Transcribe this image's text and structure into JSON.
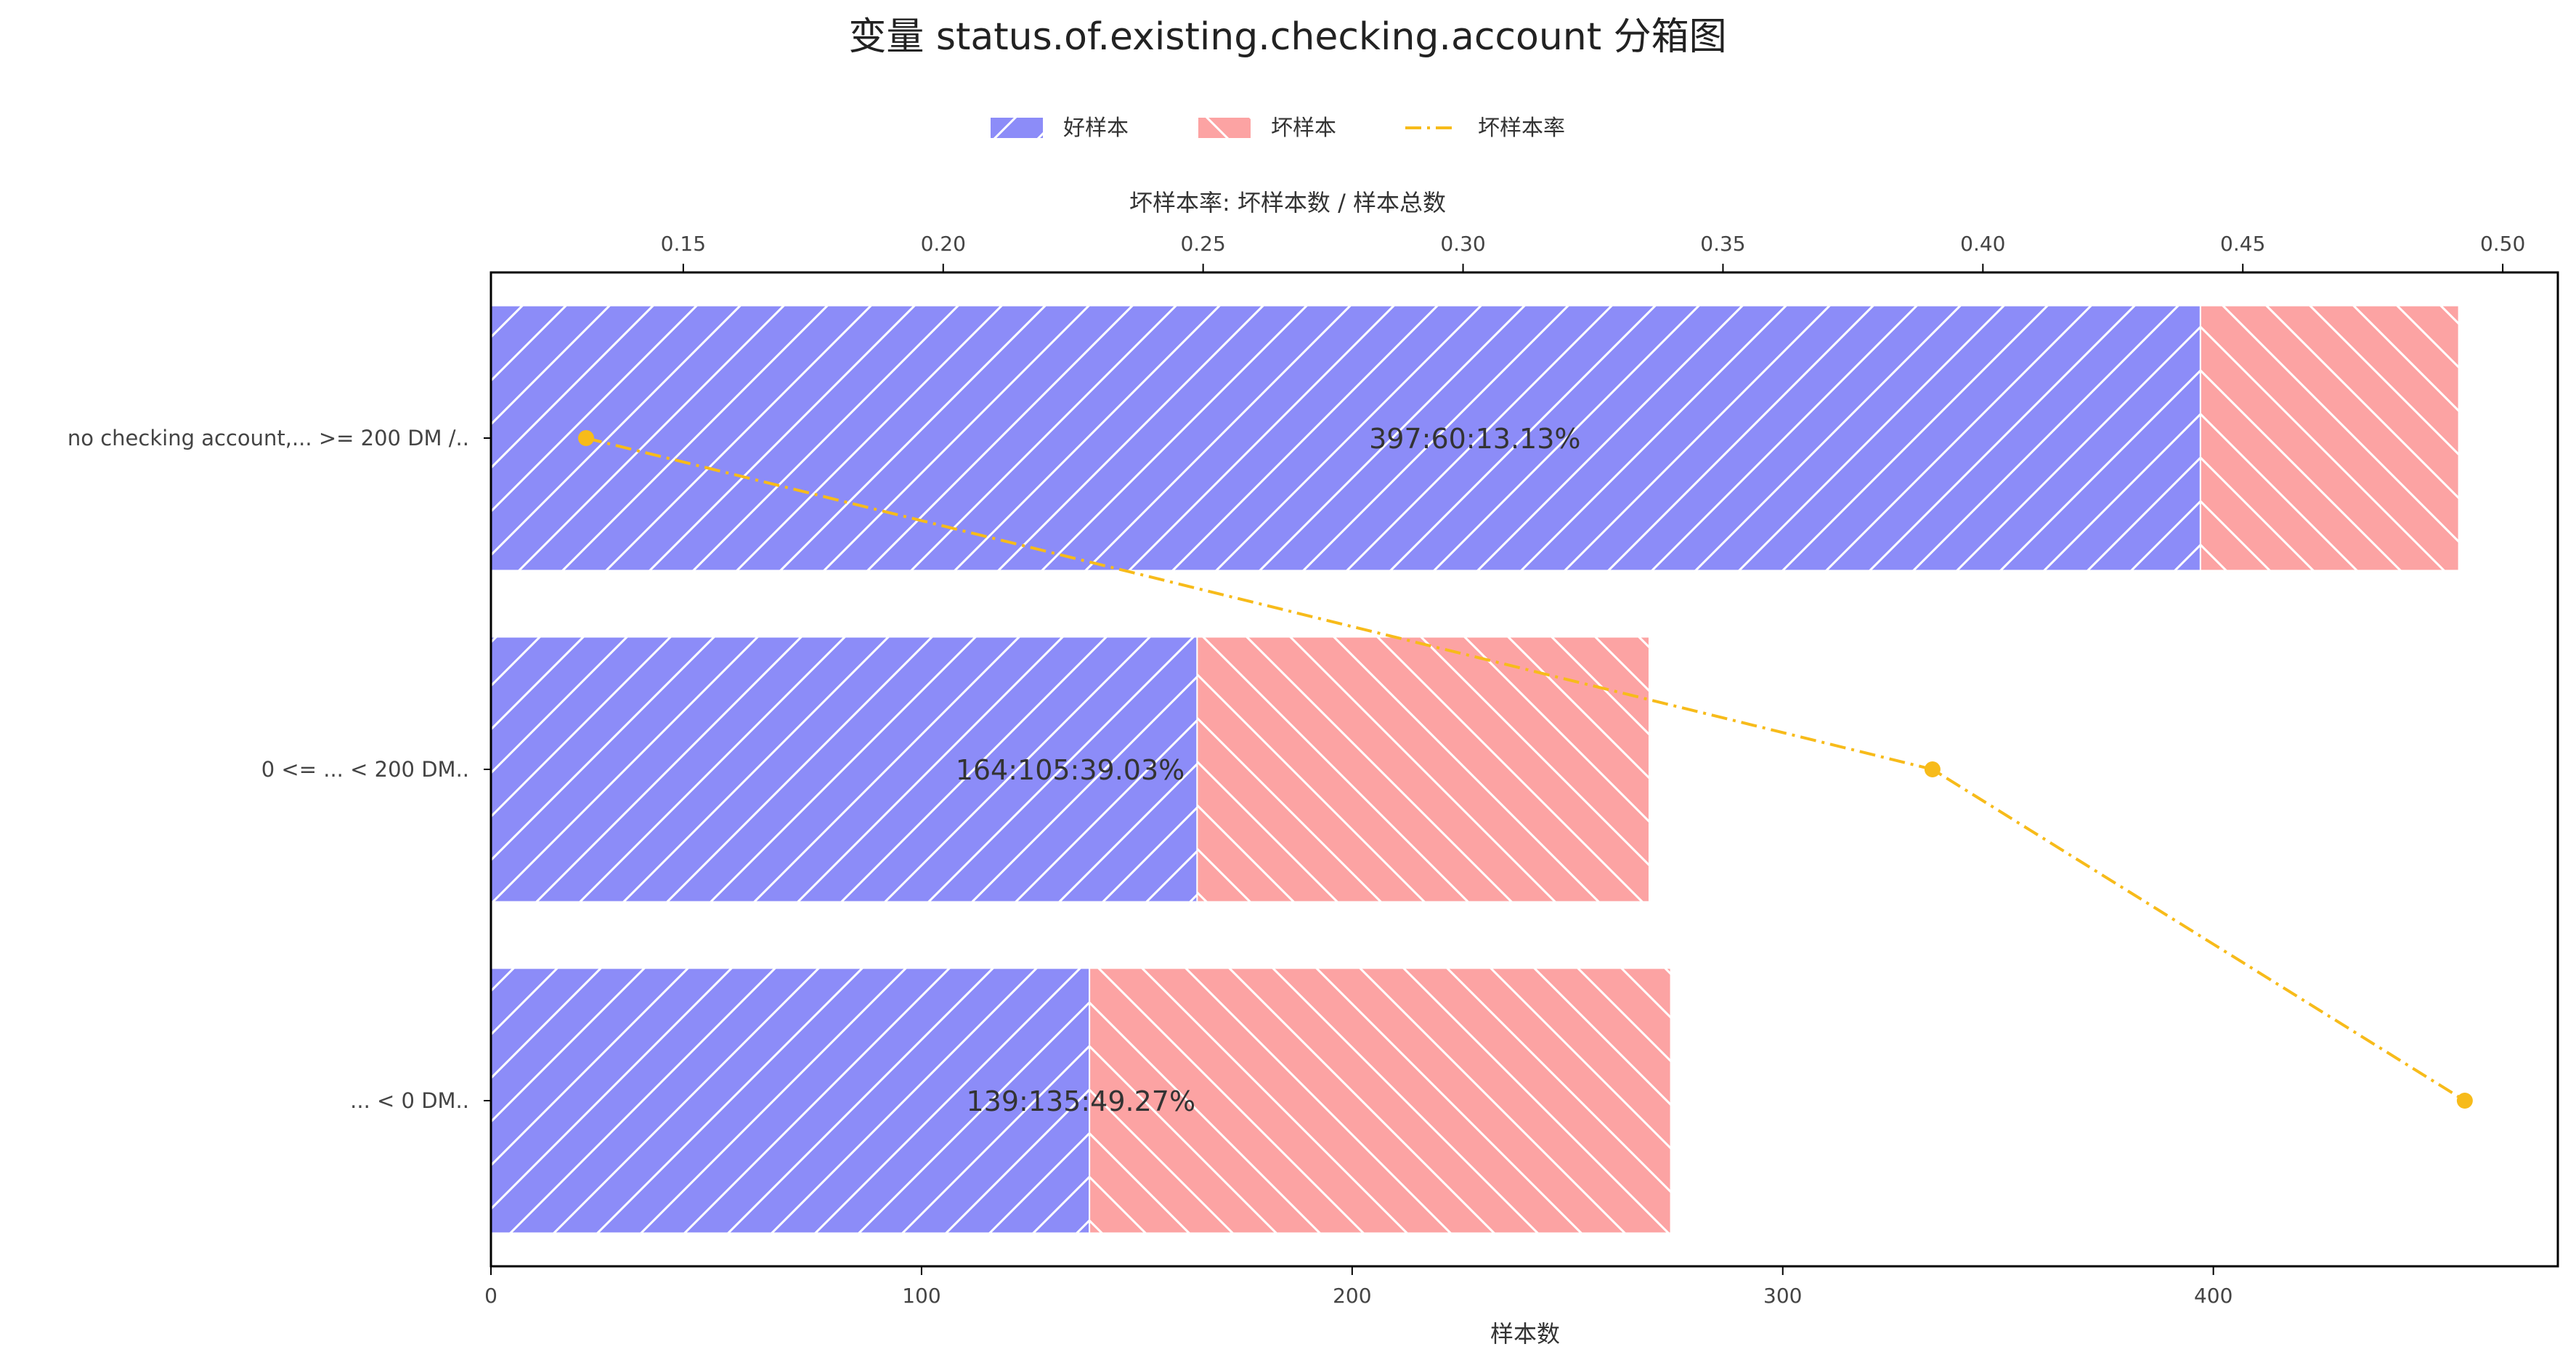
{
  "chart_data": {
    "type": "bar",
    "orientation": "horizontal",
    "stacked": true,
    "title": "变量 status.of.existing.checking.account 分箱图",
    "xlabel": "样本数",
    "x2label": "坏样本率: 坏样本数 / 样本总数",
    "categories": [
      "no checking account,... >= 200 DM /..",
      "0 <= ... < 200 DM..",
      "... < 0 DM.."
    ],
    "series": [
      {
        "name": "好样本",
        "values": [
          397,
          164,
          139
        ],
        "color": "#8c8cf8",
        "hatch": "forward-diagonal"
      },
      {
        "name": "坏样本",
        "values": [
          60,
          105,
          135
        ],
        "color": "#fca3a3",
        "hatch": "back-diagonal"
      }
    ],
    "line_series": {
      "name": "坏样本率",
      "values": [
        0.1313,
        0.3903,
        0.4927
      ],
      "color": "#f7bb1a",
      "style": "dash-dot",
      "axis": "top"
    },
    "data_labels": [
      "397:60:13.13%",
      "164:105:39.03%",
      "139:135:49.27%"
    ],
    "xlim": [
      0,
      480
    ],
    "xticks": [
      0,
      100,
      200,
      300,
      400
    ],
    "x2lim": [
      0.113,
      0.5106
    ],
    "x2ticks": [
      0.15,
      0.2,
      0.25,
      0.3,
      0.35,
      0.4,
      0.45,
      0.5
    ],
    "x2tick_labels": [
      "0.15",
      "0.20",
      "0.25",
      "0.30",
      "0.35",
      "0.40",
      "0.45",
      "0.50"
    ],
    "legend_position": "top-center",
    "grid": false
  }
}
